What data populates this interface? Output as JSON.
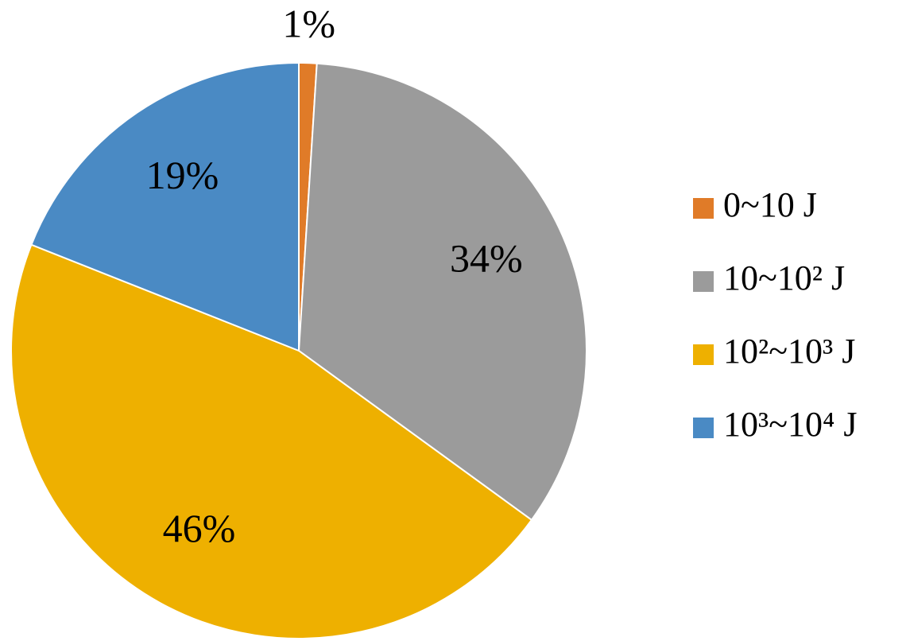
{
  "chart_data": {
    "type": "pie",
    "categories": [
      "0~10 J",
      "10~10² J",
      "10²~10³ J",
      "10³~10⁴ J"
    ],
    "values": [
      1,
      34,
      46,
      19
    ],
    "value_labels": [
      "1%",
      "34%",
      "46%",
      "19%"
    ],
    "colors": [
      "#e07b28",
      "#9b9b9b",
      "#eeb000",
      "#4a8ac4"
    ],
    "legend": "right"
  }
}
